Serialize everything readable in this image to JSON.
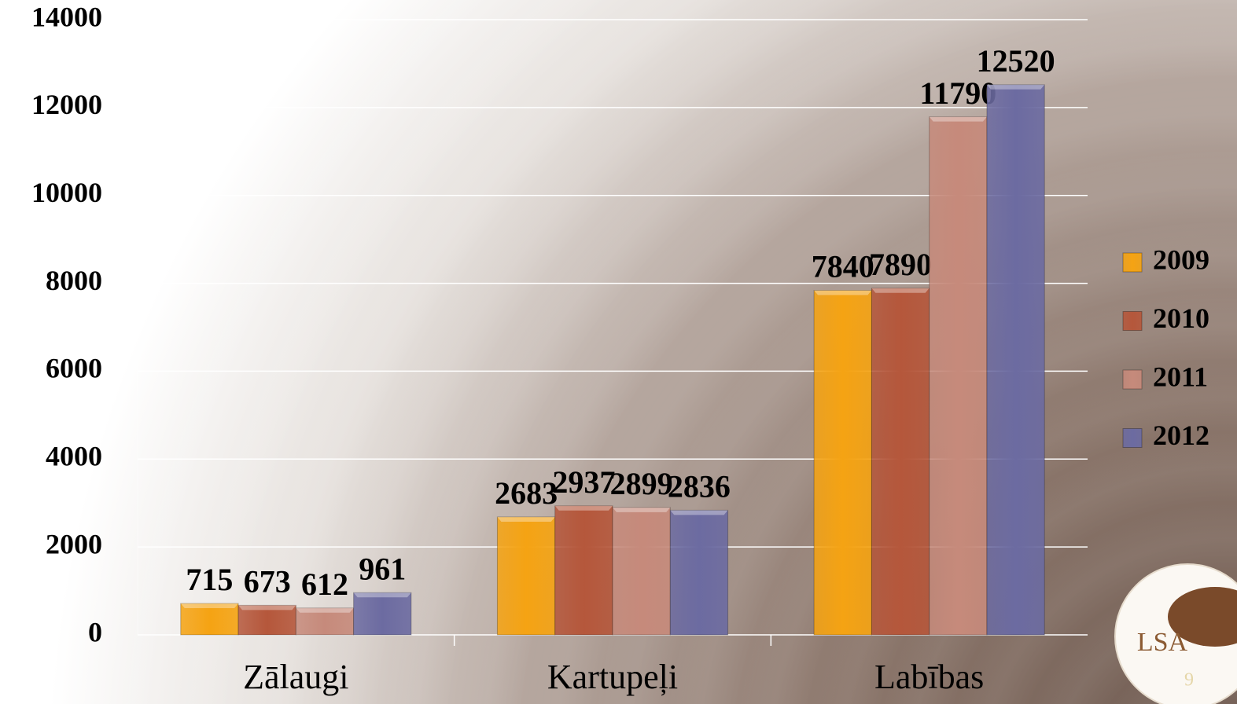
{
  "chart_data": {
    "type": "bar",
    "categories": [
      "Zālaugi",
      "Kartupeļi",
      "Labības"
    ],
    "series": [
      {
        "name": "2009",
        "color": "#f5a313",
        "values": [
          715,
          2683,
          7840
        ]
      },
      {
        "name": "2010",
        "color": "#b5573b",
        "values": [
          673,
          2937,
          7890
        ]
      },
      {
        "name": "2011",
        "color": "#c68a7b",
        "values": [
          612,
          2899,
          11790
        ]
      },
      {
        "name": "2012",
        "color": "#6c6ba1",
        "values": [
          961,
          2836,
          12520
        ]
      }
    ],
    "ylim": [
      0,
      14000
    ],
    "yticks": [
      0,
      2000,
      4000,
      6000,
      8000,
      10000,
      12000,
      14000
    ],
    "grid": true,
    "legend": "right"
  },
  "logo_text": "LSA",
  "slide_number": "9"
}
